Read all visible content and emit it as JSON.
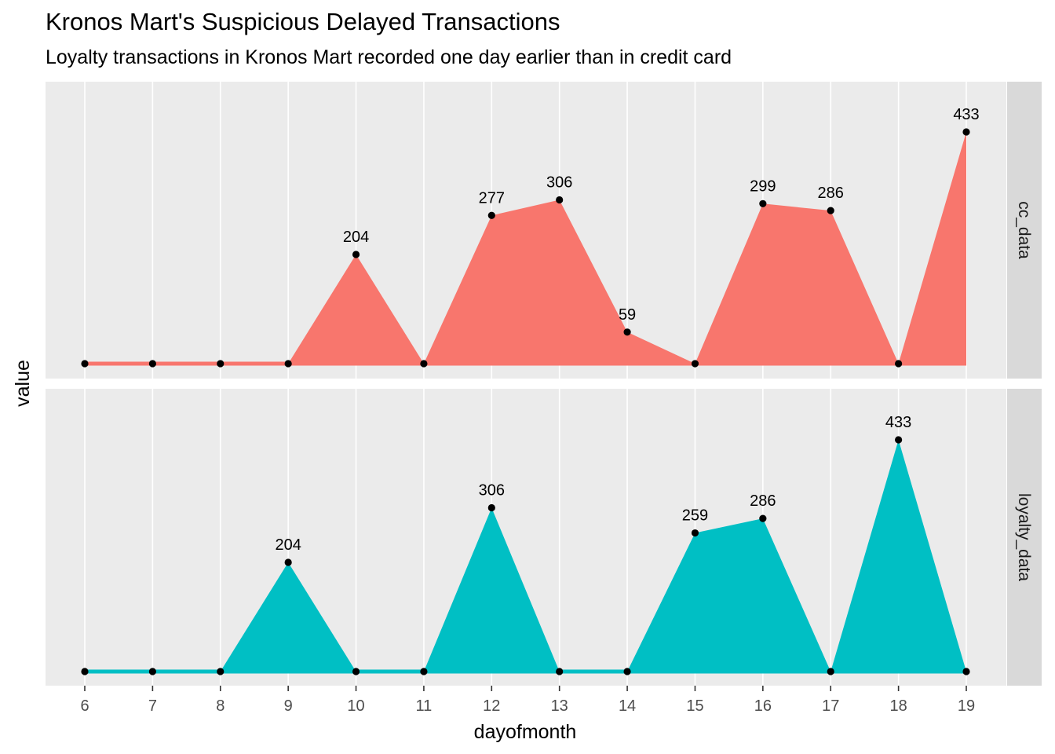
{
  "chart_data": {
    "type": "area",
    "title": "Kronos Mart's Suspicious Delayed Transactions",
    "subtitle": "Loyalty transactions in Kronos Mart recorded one day earlier than in credit card",
    "xlabel": "dayofmonth",
    "ylabel": "value",
    "x": [
      6,
      7,
      8,
      9,
      10,
      11,
      12,
      13,
      14,
      15,
      16,
      17,
      18,
      19
    ],
    "ylim": [
      0,
      433
    ],
    "grid": true,
    "facets": [
      {
        "name": "cc_data",
        "color": "#F8766D",
        "values": [
          0,
          0,
          0,
          0,
          204,
          0,
          277,
          306,
          59,
          0,
          299,
          286,
          0,
          433
        ],
        "labels": [
          null,
          null,
          null,
          null,
          "204",
          null,
          "277",
          "306",
          "59",
          null,
          "299",
          "286",
          null,
          "433"
        ]
      },
      {
        "name": "loyalty_data",
        "color": "#00BFC4",
        "values": [
          0,
          0,
          0,
          204,
          0,
          0,
          306,
          0,
          0,
          259,
          286,
          0,
          433,
          0
        ],
        "labels": [
          null,
          null,
          null,
          "204",
          null,
          null,
          "306",
          null,
          null,
          "259",
          "286",
          null,
          "433",
          null
        ]
      }
    ]
  }
}
